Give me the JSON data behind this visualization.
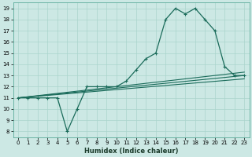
{
  "title": "",
  "xlabel": "Humidex (Indice chaleur)",
  "bg_color": "#cce8e4",
  "grid_color": "#aad4cc",
  "line_color": "#1a6b5a",
  "xlim": [
    -0.5,
    23.5
  ],
  "ylim": [
    7.5,
    19.5
  ],
  "xticks": [
    0,
    1,
    2,
    3,
    4,
    5,
    6,
    7,
    8,
    9,
    10,
    11,
    12,
    13,
    14,
    15,
    16,
    17,
    18,
    19,
    20,
    21,
    22,
    23
  ],
  "yticks": [
    8,
    9,
    10,
    11,
    12,
    13,
    14,
    15,
    16,
    17,
    18,
    19
  ],
  "main_x": [
    0,
    1,
    2,
    3,
    4,
    5,
    6,
    7,
    8,
    9,
    10,
    11,
    12,
    13,
    14,
    15,
    16,
    17,
    18,
    19,
    20,
    21,
    22,
    23
  ],
  "main_y": [
    11,
    11,
    11,
    11,
    11,
    8,
    10,
    12,
    12,
    12,
    12,
    12.5,
    13.5,
    14.5,
    15,
    18,
    19,
    18.5,
    19,
    18,
    17,
    13.8,
    13,
    13
  ],
  "line1_x": [
    0,
    23
  ],
  "line1_y": [
    11.0,
    13.3
  ],
  "line2_x": [
    0,
    23
  ],
  "line2_y": [
    11.0,
    13.0
  ],
  "line3_x": [
    0,
    23
  ],
  "line3_y": [
    11.0,
    12.7
  ]
}
